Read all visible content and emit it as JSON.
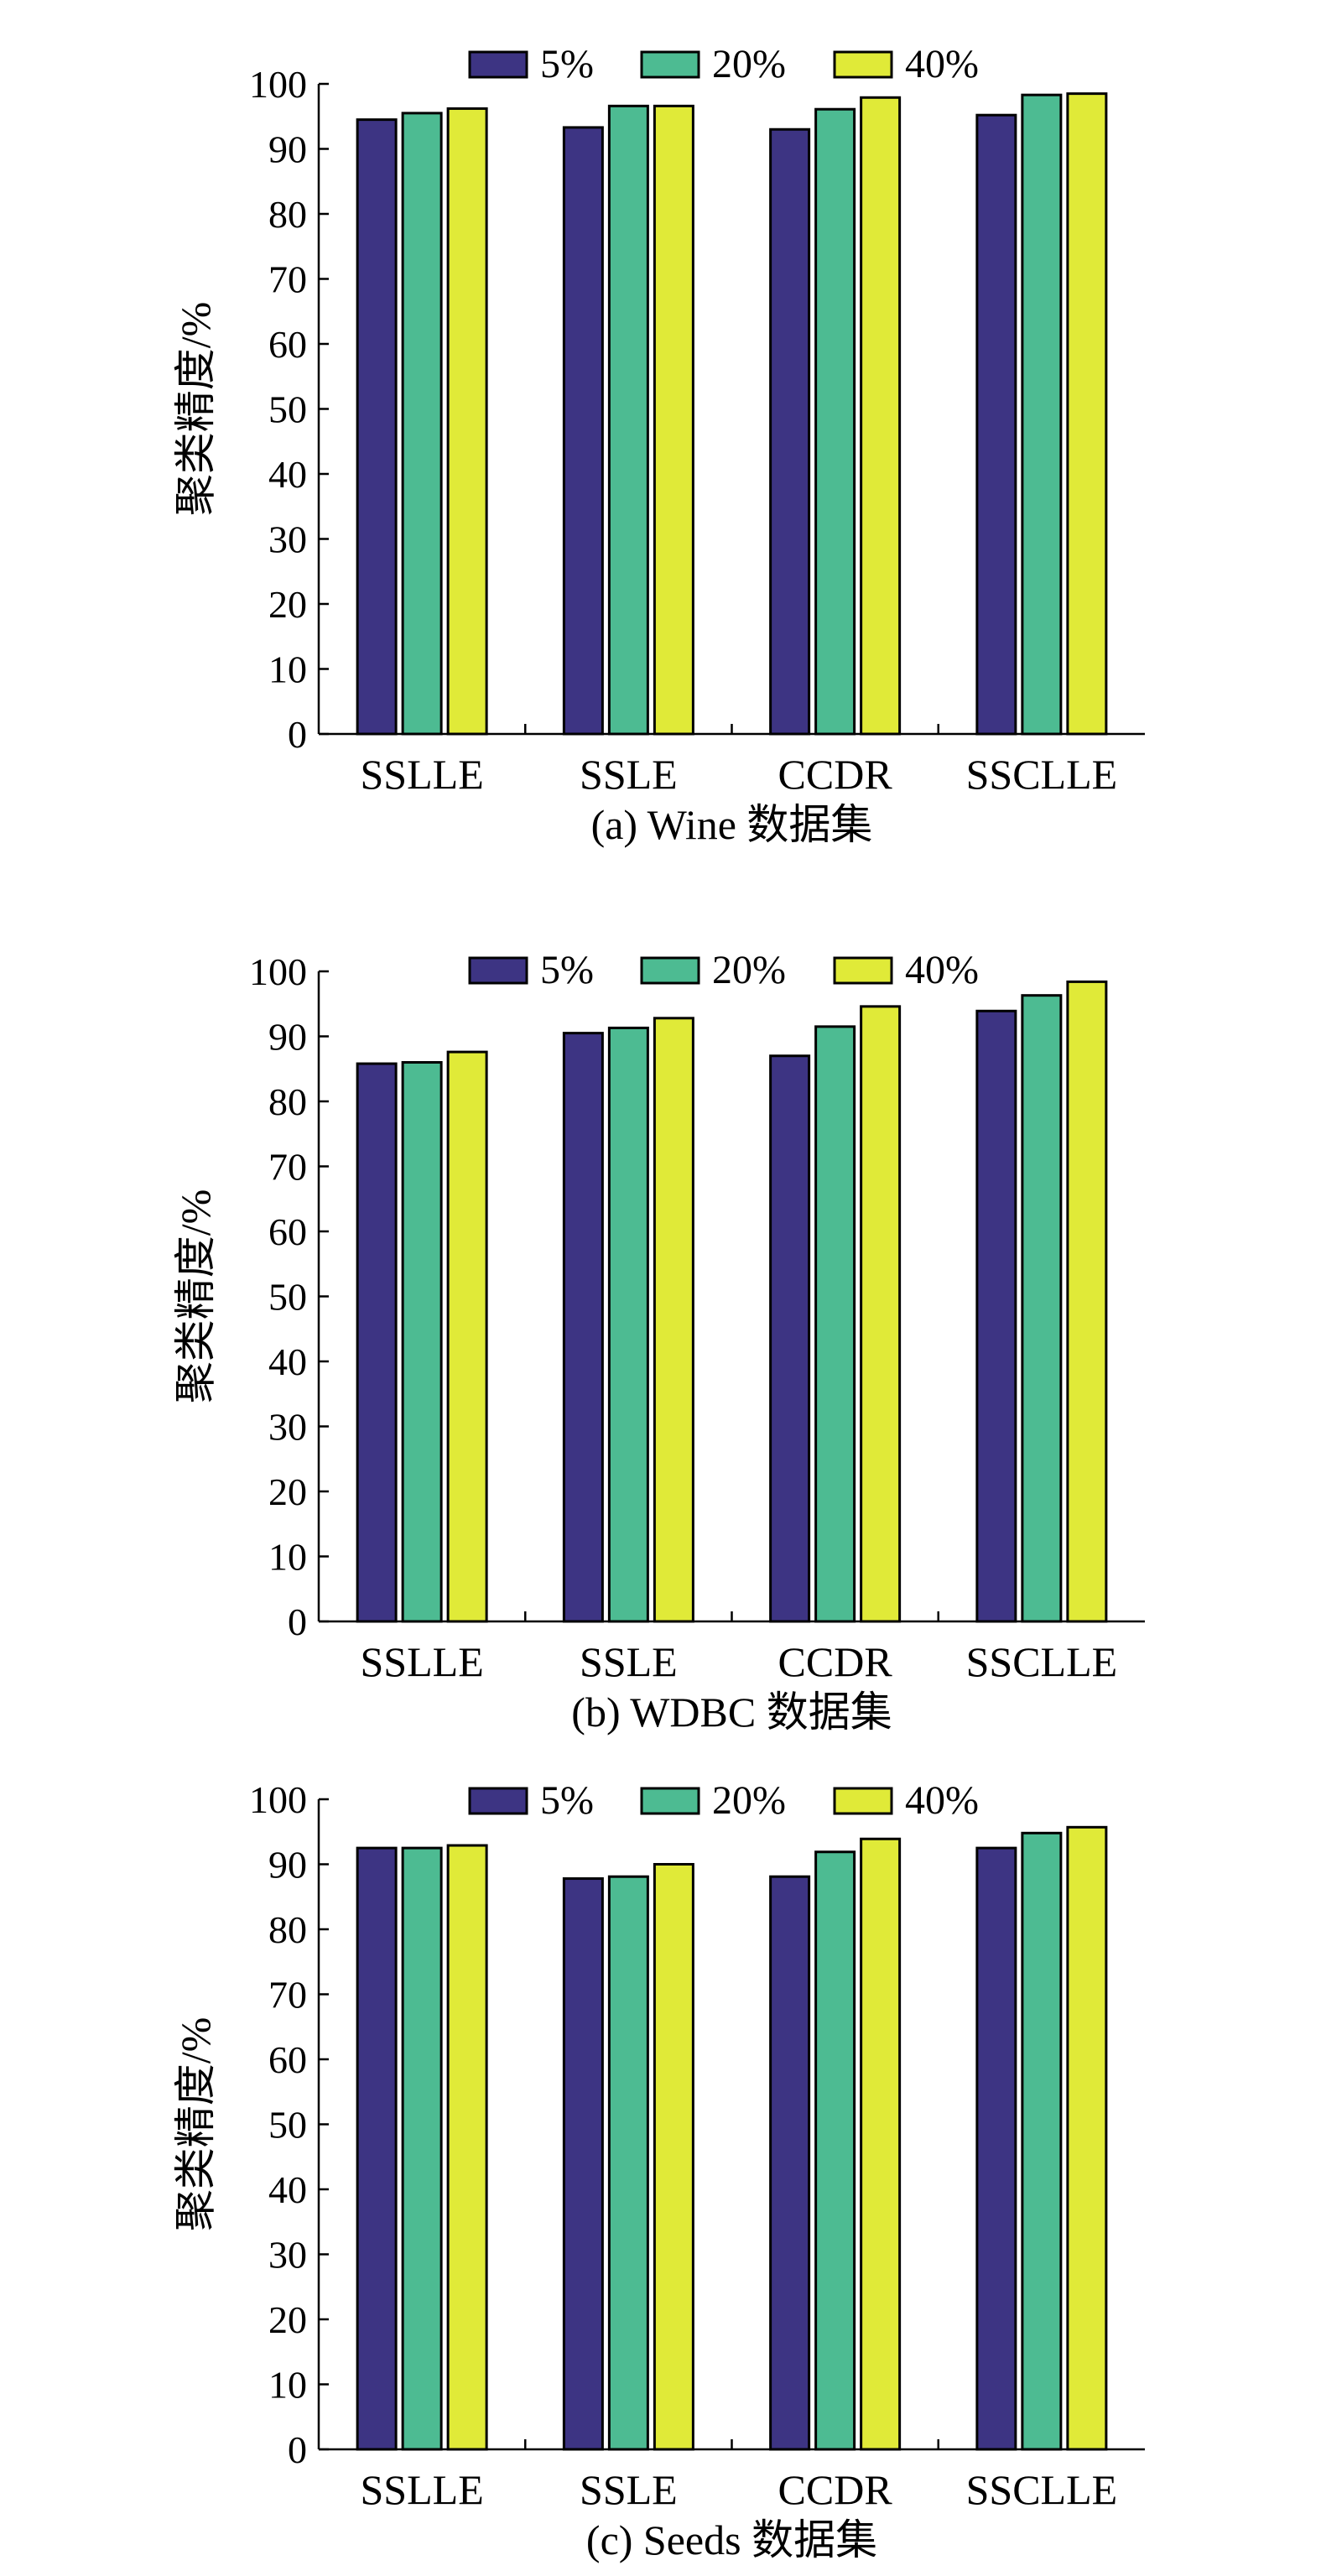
{
  "chart_data": [
    {
      "type": "bar",
      "caption": "(a) Wine 数据集",
      "ylabel": "聚类精度/%",
      "ylim": [
        0,
        100
      ],
      "yticks": [
        0,
        10,
        20,
        30,
        40,
        50,
        60,
        70,
        80,
        90,
        100
      ],
      "categories": [
        "SSLLE",
        "SSLE",
        "CCDR",
        "SSCLLE"
      ],
      "legend_position": "top",
      "series": [
        {
          "name": "5%",
          "color": "#3d3483",
          "values": [
            94.5,
            93.3,
            93.0,
            95.2
          ]
        },
        {
          "name": "20%",
          "color": "#4dbb92",
          "values": [
            95.5,
            96.6,
            96.1,
            98.3
          ]
        },
        {
          "name": "40%",
          "color": "#e0ea38",
          "values": [
            96.2,
            96.6,
            97.9,
            98.5
          ]
        }
      ]
    },
    {
      "type": "bar",
      "caption": "(b) WDBC 数据集",
      "ylabel": "聚类精度/%",
      "ylim": [
        0,
        100
      ],
      "yticks": [
        0,
        10,
        20,
        30,
        40,
        50,
        60,
        70,
        80,
        90,
        100
      ],
      "categories": [
        "SSLLE",
        "SSLE",
        "CCDR",
        "SSCLLE"
      ],
      "legend_position": "top",
      "series": [
        {
          "name": "5%",
          "color": "#3d3483",
          "values": [
            85.8,
            90.5,
            87.0,
            93.9
          ]
        },
        {
          "name": "20%",
          "color": "#4dbb92",
          "values": [
            86.0,
            91.3,
            91.5,
            96.3
          ]
        },
        {
          "name": "40%",
          "color": "#e0ea38",
          "values": [
            87.6,
            92.8,
            94.6,
            98.4
          ]
        }
      ]
    },
    {
      "type": "bar",
      "caption": "(c) Seeds 数据集",
      "ylabel": "聚类精度/%",
      "ylim": [
        0,
        100
      ],
      "yticks": [
        0,
        10,
        20,
        30,
        40,
        50,
        60,
        70,
        80,
        90,
        100
      ],
      "categories": [
        "SSLLE",
        "SSLE",
        "CCDR",
        "SSCLLE"
      ],
      "legend_position": "top",
      "series": [
        {
          "name": "5%",
          "color": "#3d3483",
          "values": [
            92.5,
            87.8,
            88.1,
            92.5
          ]
        },
        {
          "name": "20%",
          "color": "#4dbb92",
          "values": [
            92.5,
            88.1,
            91.9,
            94.8
          ]
        },
        {
          "name": "40%",
          "color": "#e0ea38",
          "values": [
            92.9,
            90.0,
            93.9,
            95.7
          ]
        }
      ]
    }
  ]
}
